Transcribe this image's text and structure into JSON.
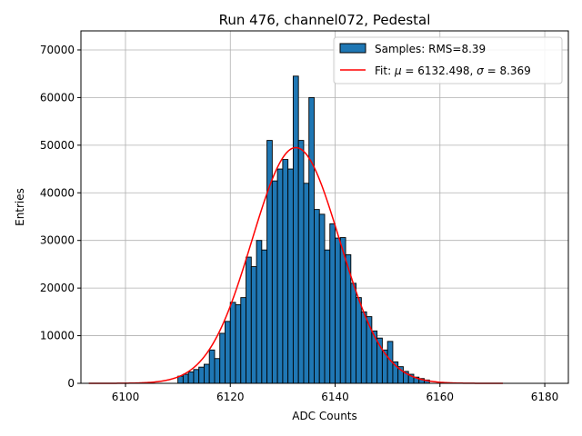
{
  "chart_data": {
    "type": "histogram",
    "title": "Run 476, channel072, Pedestal",
    "xlabel": "ADC Counts",
    "ylabel": "Entries",
    "xlim": [
      6091.5,
      6184.5
    ],
    "ylim": [
      0,
      74000
    ],
    "xticks": [
      6100,
      6120,
      6140,
      6160,
      6180
    ],
    "yticks": [
      0,
      10000,
      20000,
      30000,
      40000,
      50000,
      60000,
      70000
    ],
    "grid": true,
    "legend_position": "top-right",
    "bin_start": 6110,
    "bin_width": 1,
    "bin_values": [
      1500,
      1900,
      2400,
      2900,
      3400,
      4000,
      7000,
      5200,
      10500,
      13000,
      17000,
      16500,
      18000,
      26500,
      24500,
      30000,
      28000,
      51000,
      42500,
      45000,
      47000,
      45000,
      64500,
      51000,
      42000,
      60000,
      36500,
      35500,
      28000,
      33500,
      30500,
      30600,
      27000,
      21000,
      18000,
      15000,
      14000,
      11000,
      9500,
      7000,
      8800,
      4500,
      3500,
      2500,
      1900,
      1300,
      1000,
      700
    ],
    "series": [
      {
        "name": "Samples: RMS=8.39",
        "kind": "histogram",
        "color": "#1f77b4"
      },
      {
        "name": "Fit: μ = 6132.498, σ = 8.369",
        "kind": "line",
        "color": "#ff0000",
        "mu": 6132.498,
        "sigma": 8.369,
        "amplitude": 49500,
        "x_range": [
          6093,
          6172
        ]
      }
    ],
    "legend": {
      "samples_text": "Samples: RMS=8.39",
      "fit_prefix": "Fit: ",
      "mu_symbol": "μ",
      "mu_text": " = 6132.498, ",
      "sigma_symbol": "σ",
      "sigma_text": " = 8.369"
    }
  }
}
